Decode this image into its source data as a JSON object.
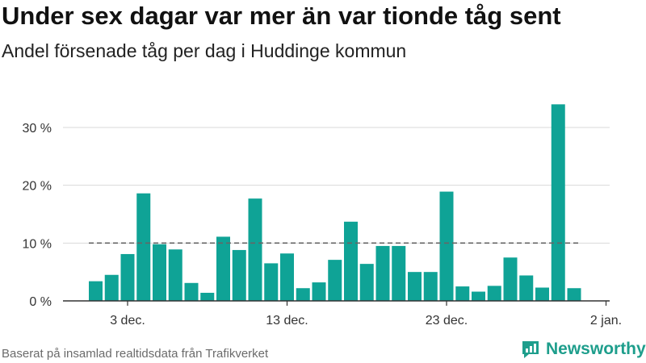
{
  "header": {
    "title": "Under sex dagar var mer än var tionde tåg sent",
    "subtitle": "Andel försenade tåg per dag i Huddinge kommun"
  },
  "footer": {
    "source": "Baserat på insamlad realtidsdata från Trafikverket",
    "brand": "Newsworthy"
  },
  "colors": {
    "bar": "#0fa396",
    "grid": "#d9d9d9",
    "reference": "#666666",
    "brand": "#1e9e8c"
  },
  "chart_data": {
    "type": "bar",
    "title": "Under sex dagar var mer än var tionde tåg sent",
    "subtitle": "Andel försenade tåg per dag i Huddinge kommun",
    "xlabel": "",
    "ylabel": "",
    "categories": [
      "1 dec.",
      "2 dec.",
      "3 dec.",
      "4 dec.",
      "5 dec.",
      "6 dec.",
      "7 dec.",
      "8 dec.",
      "9 dec.",
      "10 dec.",
      "11 dec.",
      "12 dec.",
      "13 dec.",
      "14 dec.",
      "15 dec.",
      "16 dec.",
      "17 dec.",
      "18 dec.",
      "19 dec.",
      "20 dec.",
      "21 dec.",
      "22 dec.",
      "23 dec.",
      "24 dec.",
      "25 dec.",
      "26 dec.",
      "27 dec.",
      "28 dec.",
      "29 dec.",
      "30 dec.",
      "31 dec."
    ],
    "values": [
      3.4,
      4.5,
      8.1,
      18.6,
      9.8,
      8.9,
      3.1,
      1.4,
      11.1,
      8.8,
      17.7,
      6.5,
      8.2,
      2.2,
      3.2,
      7.1,
      13.7,
      6.4,
      9.5,
      9.5,
      5.0,
      5.0,
      18.9,
      2.5,
      1.6,
      2.6,
      7.5,
      4.4,
      2.3,
      34.0,
      2.2
    ],
    "reference_line": 10,
    "ylim": [
      0,
      35
    ],
    "yticks": [
      {
        "value": 0,
        "label": "0 %"
      },
      {
        "value": 10,
        "label": "10 %"
      },
      {
        "value": 20,
        "label": "20 %"
      },
      {
        "value": 30,
        "label": "30 %"
      }
    ],
    "xticks": [
      {
        "index": 2,
        "label": "3 dec."
      },
      {
        "index": 12,
        "label": "13 dec."
      },
      {
        "index": 22,
        "label": "23 dec."
      },
      {
        "index": 32,
        "label": "2 jan."
      }
    ],
    "grid": true,
    "legend": "none"
  }
}
